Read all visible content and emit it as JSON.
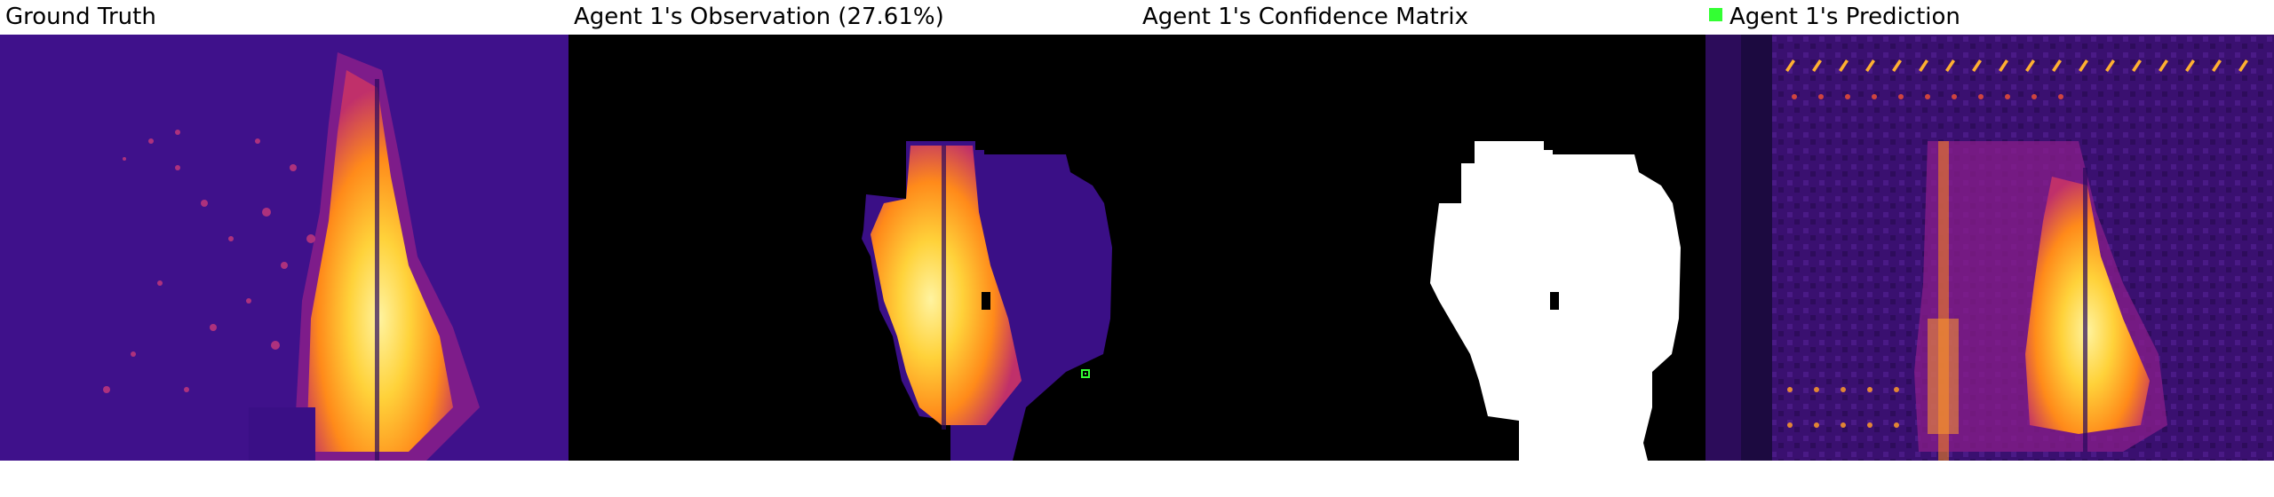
{
  "titles": {
    "ground_truth": "Ground Truth",
    "observation": "Agent 1's Observation (27.61%)",
    "confidence": "Agent 1's Confidence Matrix",
    "prediction": "Agent 1's Prediction"
  },
  "colors": {
    "agent_marker": "#33ff33",
    "background": "#ffffff",
    "mask_black": "#000000",
    "mask_white": "#ffffff",
    "fire_palette": [
      "#2a0a6e",
      "#5b16a0",
      "#b0287a",
      "#ff7a1a",
      "#ffd23a",
      "#fff3a0"
    ]
  }
}
